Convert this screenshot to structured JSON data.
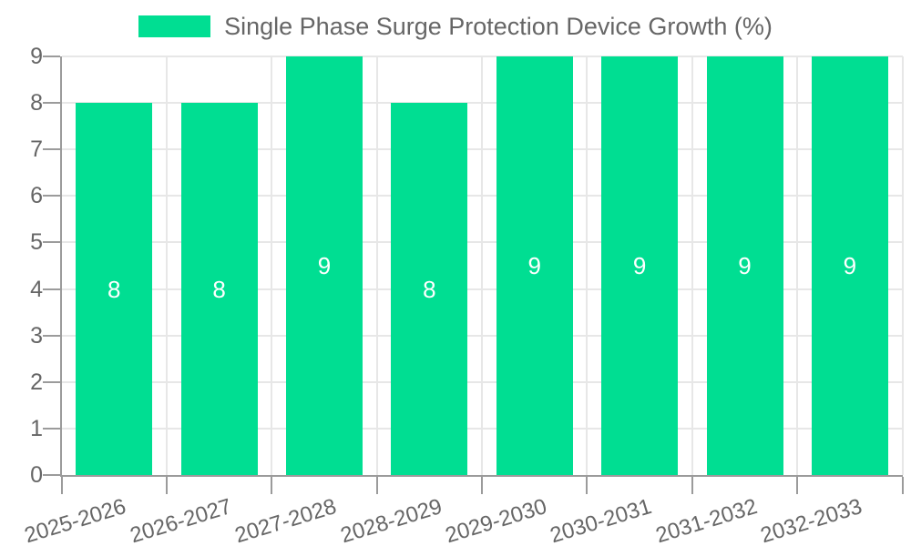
{
  "chart_data": {
    "type": "bar",
    "title": "Single Phase Surge Protection Device Growth (%)",
    "categories": [
      "2025-2026",
      "2026-2027",
      "2027-2028",
      "2028-2029",
      "2029-2030",
      "2030-2031",
      "2031-2032",
      "2032-2033"
    ],
    "values": [
      8,
      8,
      9,
      8,
      9,
      9,
      9,
      9
    ],
    "value_labels": [
      "8",
      "8",
      "9",
      "8",
      "9",
      "9",
      "9",
      "9"
    ],
    "xlabel": "",
    "ylabel": "",
    "ylim": [
      0,
      9
    ],
    "ytick_step": 1,
    "yticks": [
      "0",
      "1",
      "2",
      "3",
      "4",
      "5",
      "6",
      "7",
      "8",
      "9"
    ],
    "grid": true,
    "legend_position": "top-center",
    "colors": {
      "bar": "#00de92",
      "value_label": "#ffffff",
      "axis_text": "#666666",
      "legend_text": "#666666",
      "grid_line": "#e7e7e7",
      "axis_line": "#9b9b9b",
      "background": "#ffffff"
    }
  }
}
